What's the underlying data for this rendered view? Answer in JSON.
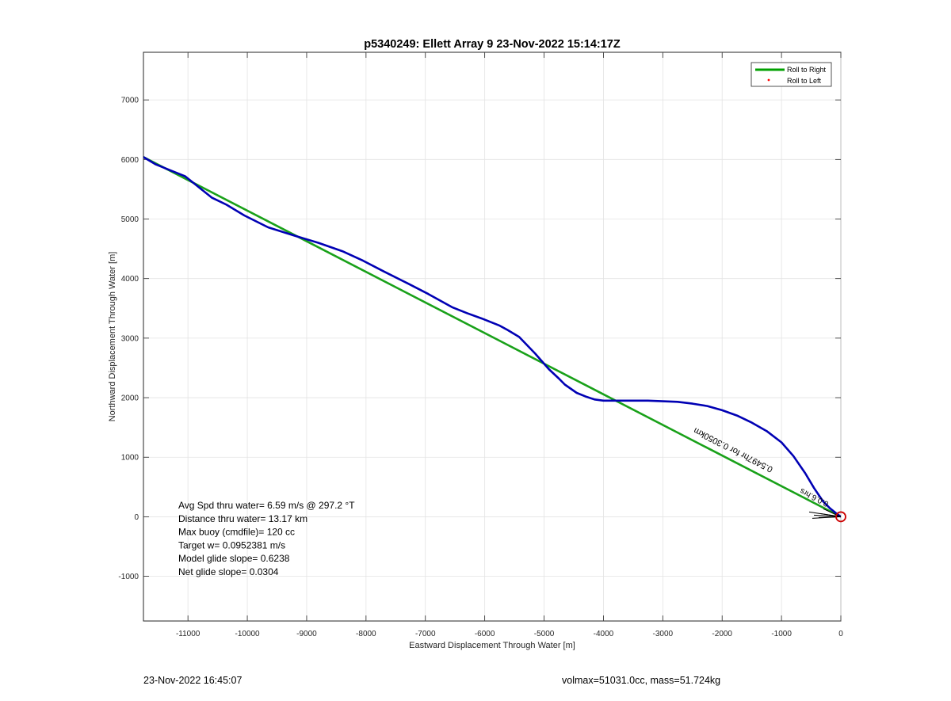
{
  "chart_data": {
    "type": "line",
    "title": "p5340249: Ellett Array 9 23-Nov-2022 15:14:17Z",
    "xlabel": "Eastward Displacement Through Water [m]",
    "ylabel": "Northward Displacement Through Water [m]",
    "xlim": [
      -11750,
      0
    ],
    "ylim": [
      -1750,
      7800
    ],
    "x_ticks": [
      -11000,
      -10000,
      -9000,
      -8000,
      -7000,
      -6000,
      -5000,
      -4000,
      -3000,
      -2000,
      -1000,
      0
    ],
    "y_ticks": [
      -1000,
      0,
      1000,
      2000,
      3000,
      4000,
      5000,
      6000,
      7000
    ],
    "grid": true,
    "legend": {
      "placement": "top-right",
      "entries": [
        {
          "label": "Roll to Right",
          "color": "#00a000",
          "style": "line"
        },
        {
          "label": "Roll to Left",
          "color": "#ff0000",
          "style": "dot"
        }
      ]
    },
    "series": [
      {
        "name": "Roll to Right",
        "color": "#19a119",
        "x": [
          -11750,
          0
        ],
        "y": [
          6040,
          0
        ]
      },
      {
        "color": "#0000b4",
        "x": [
          -11750,
          -11550,
          -11300,
          -11050,
          -10850,
          -10600,
          -10350,
          -10050,
          -9650,
          -9200,
          -8800,
          -8400,
          -8050,
          -7700,
          -7300,
          -6950,
          -6550,
          -6300,
          -6050,
          -5750,
          -5620,
          -5420,
          -5150,
          -4920,
          -4750,
          -4650,
          -4450,
          -4300,
          -4150,
          -4000,
          -3750,
          -3500,
          -3250,
          -3000,
          -2750,
          -2500,
          -2250,
          -2000,
          -1750,
          -1500,
          -1250,
          -1000,
          -800,
          -600,
          -450,
          -300,
          -180,
          -80,
          0
        ],
        "y": [
          6040,
          5920,
          5820,
          5720,
          5560,
          5360,
          5240,
          5060,
          4860,
          4720,
          4600,
          4460,
          4300,
          4120,
          3920,
          3740,
          3520,
          3420,
          3330,
          3210,
          3140,
          3020,
          2740,
          2480,
          2320,
          2220,
          2080,
          2020,
          1970,
          1950,
          1950,
          1950,
          1950,
          1940,
          1930,
          1900,
          1860,
          1790,
          1700,
          1580,
          1440,
          1250,
          1020,
          730,
          480,
          260,
          140,
          60,
          0
        ]
      }
    ],
    "annotations": {
      "stats": [
        "Avg Spd thru water=  6.59 m/s @ 297.2 °T",
        "Distance thru water= 13.17 km",
        "Max buoy (cmdfile)= 120 cc",
        "Target w= 0.0952381 m/s",
        "Model glide slope= 0.6238",
        "Net glide slope= 0.0304"
      ],
      "rotated_label": "0.5497hr for 0.3050km",
      "rotated_label_short": "0.0.6.hrs"
    },
    "marker": {
      "x": 0,
      "y": 0,
      "color": "#cc0000",
      "shape": "circle"
    }
  },
  "footer": {
    "left": "23-Nov-2022 16:45:07",
    "right": "volmax=51031.0cc, mass=51.724kg"
  }
}
